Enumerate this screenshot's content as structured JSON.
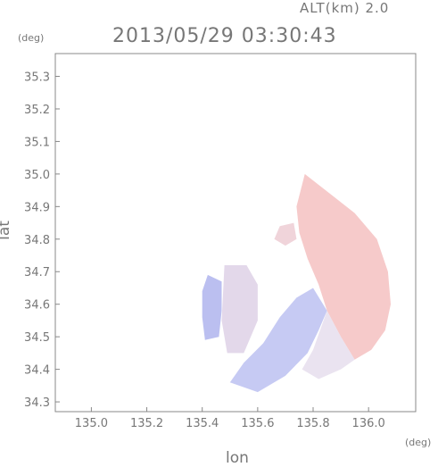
{
  "header": {
    "altitude": "ALT(km) 2.0",
    "timestamp": "2013/05/29 03:30:43"
  },
  "chart_data": {
    "type": "heatmap",
    "title": "2013/05/29 03:30:43",
    "subtitle": "ALT(km) 2.0",
    "xlabel": "lon",
    "ylabel": "lat",
    "x_unit": "(deg)",
    "y_unit": "(deg)",
    "xlim": [
      134.87,
      136.17
    ],
    "ylim": [
      34.27,
      35.37
    ],
    "x_ticks": [
      "135.0",
      "135.2",
      "135.4",
      "135.6",
      "135.8",
      "136.0"
    ],
    "y_ticks": [
      "34.3",
      "34.4",
      "34.5",
      "34.6",
      "34.7",
      "34.8",
      "34.9",
      "35.0",
      "35.1",
      "35.2",
      "35.3"
    ],
    "grid": false,
    "colors": {
      "receding": "#f0b8b8",
      "approaching": "#b8bcf0",
      "axis": "#888888"
    },
    "regions": [
      {
        "name": "east-positive",
        "polygon": [
          [
            135.77,
            35.0
          ],
          [
            135.86,
            34.94
          ],
          [
            135.95,
            34.88
          ],
          [
            136.03,
            34.8
          ],
          [
            136.07,
            34.7
          ],
          [
            136.08,
            34.6
          ],
          [
            136.06,
            34.52
          ],
          [
            136.01,
            34.46
          ],
          [
            135.95,
            34.43
          ],
          [
            135.9,
            34.5
          ],
          [
            135.85,
            34.58
          ],
          [
            135.82,
            34.66
          ],
          [
            135.78,
            34.74
          ],
          [
            135.75,
            34.82
          ],
          [
            135.74,
            34.9
          ]
        ],
        "color": "#f5c4c4"
      },
      {
        "name": "south-negative",
        "polygon": [
          [
            135.85,
            34.58
          ],
          [
            135.82,
            34.52
          ],
          [
            135.78,
            34.45
          ],
          [
            135.7,
            34.38
          ],
          [
            135.6,
            34.33
          ],
          [
            135.5,
            34.36
          ],
          [
            135.55,
            34.42
          ],
          [
            135.62,
            34.48
          ],
          [
            135.68,
            34.56
          ],
          [
            135.74,
            34.62
          ],
          [
            135.8,
            34.65
          ]
        ],
        "color": "#c0c4f2"
      },
      {
        "name": "west-negative",
        "polygon": [
          [
            135.42,
            34.69
          ],
          [
            135.47,
            34.67
          ],
          [
            135.47,
            34.58
          ],
          [
            135.46,
            34.5
          ],
          [
            135.41,
            34.49
          ],
          [
            135.4,
            34.56
          ],
          [
            135.4,
            34.64
          ]
        ],
        "color": "#b4b8ee"
      },
      {
        "name": "southeast-mix",
        "polygon": [
          [
            135.85,
            34.58
          ],
          [
            135.9,
            34.5
          ],
          [
            135.95,
            34.43
          ],
          [
            135.9,
            34.4
          ],
          [
            135.82,
            34.37
          ],
          [
            135.76,
            34.4
          ],
          [
            135.8,
            34.46
          ]
        ],
        "color": "#e8e0ee"
      },
      {
        "name": "north-positive",
        "polygon": [
          [
            135.73,
            34.85
          ],
          [
            135.74,
            34.8
          ],
          [
            135.7,
            34.78
          ],
          [
            135.66,
            34.8
          ],
          [
            135.68,
            34.84
          ]
        ],
        "color": "#eecfd6"
      },
      {
        "name": "center-mix",
        "polygon": [
          [
            135.48,
            34.72
          ],
          [
            135.56,
            34.72
          ],
          [
            135.6,
            34.66
          ],
          [
            135.6,
            34.55
          ],
          [
            135.55,
            34.45
          ],
          [
            135.49,
            34.45
          ],
          [
            135.47,
            34.55
          ]
        ],
        "color": "#e0d4e8"
      }
    ]
  }
}
